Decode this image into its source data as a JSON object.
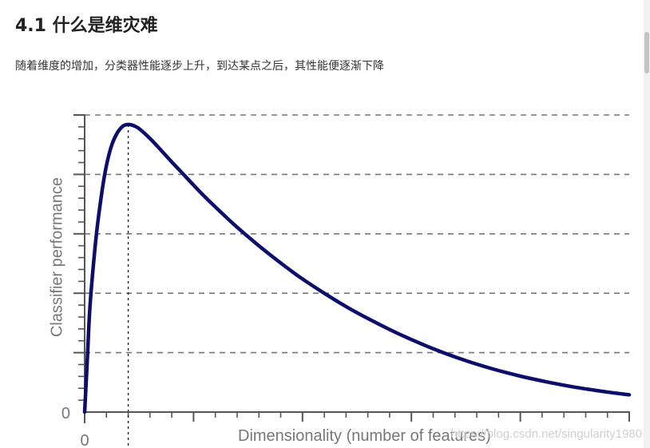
{
  "article": {
    "heading": "4.1 什么是维灾难",
    "description": "随着维度的增加，分类器性能逐步上升，到达某点之后，其性能便逐渐下降"
  },
  "watermark": "https://blog.csdn.net/singularity1980",
  "colors": {
    "curve": "#0d0d6b",
    "axis": "#555555",
    "grid": "#777777",
    "text": "#777777"
  },
  "chart_data": {
    "type": "line",
    "title": "",
    "xlabel": "Dimensionality (number of features)",
    "ylabel": "Classifier performance",
    "x_origin_label": "0",
    "y_origin_label": "0",
    "xlim": [
      0,
      100
    ],
    "ylim": [
      0,
      100
    ],
    "grid": "horizontal-dashed",
    "y_grid_values": [
      20,
      40,
      60,
      80,
      100
    ],
    "peak_marker_x": 8,
    "series": [
      {
        "values_x": [
          0,
          0.5,
          1,
          2,
          3,
          4,
          5,
          6,
          7,
          8,
          9,
          10,
          12,
          14,
          16,
          18,
          20,
          22,
          25,
          28,
          31,
          34,
          37,
          40,
          44,
          48,
          52,
          56,
          60,
          65,
          70,
          75,
          80,
          85,
          90,
          95,
          100
        ],
        "values_y": [
          0,
          18,
          36,
          57,
          72,
          83,
          90,
          94,
          96.2,
          96.8,
          96.4,
          95.4,
          92.1,
          88.2,
          84.2,
          80.3,
          76.4,
          72.6,
          67.3,
          62.2,
          57.5,
          53.0,
          48.8,
          44.8,
          40.0,
          35.5,
          31.5,
          27.8,
          24.4,
          20.6,
          17.3,
          14.5,
          12.1,
          10.1,
          8.4,
          7.0,
          5.8
        ]
      }
    ]
  }
}
